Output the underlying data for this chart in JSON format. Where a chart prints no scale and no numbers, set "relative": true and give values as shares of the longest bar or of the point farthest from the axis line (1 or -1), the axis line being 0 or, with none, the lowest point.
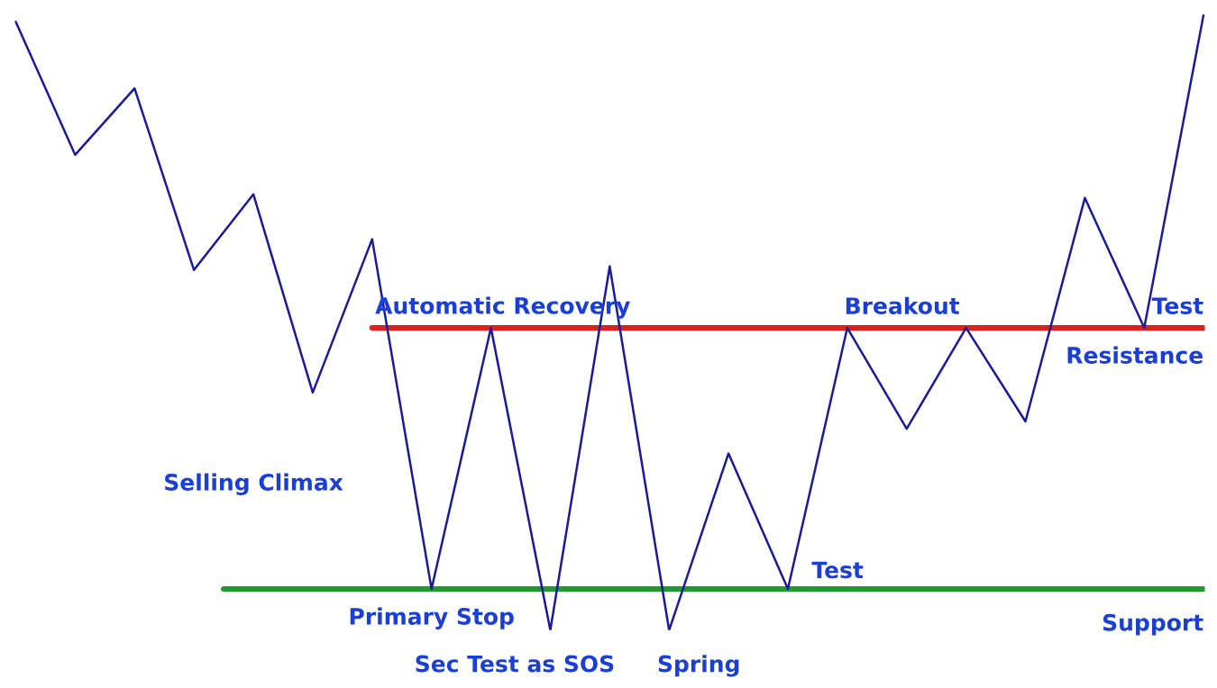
{
  "chart_data": {
    "type": "line",
    "relative": true,
    "categories": [
      null,
      null,
      null,
      null,
      null,
      null,
      null,
      null,
      null,
      null,
      null,
      null,
      null,
      null,
      null,
      null,
      null,
      null,
      null,
      null,
      null
    ],
    "series": [
      {
        "color": "#1a1a9c",
        "values": [
          0.988,
          0.772,
          0.88,
          0.585,
          0.708,
          0.386,
          0.635,
          0.067,
          0.491,
          0,
          0.591,
          0,
          0.287,
          0.067,
          0.491,
          0.327,
          0.491,
          0.339,
          0.702,
          0.491,
          1
        ]
      }
    ],
    "ref_lines": [
      {
        "axis": "y",
        "value": 0.491,
        "label": "Resistance",
        "color": "#e0201a"
      },
      {
        "axis": "y",
        "value": 0.067,
        "label": "Support",
        "color": "#1e9a2e"
      }
    ],
    "annotations": [
      "Automatic Recovery",
      "Selling Climax",
      "Primary Stop",
      "Sec Test as SOS",
      "Spring",
      "Test",
      "Breakout",
      "Test"
    ],
    "marker": "none",
    "line_style": "solid"
  }
}
